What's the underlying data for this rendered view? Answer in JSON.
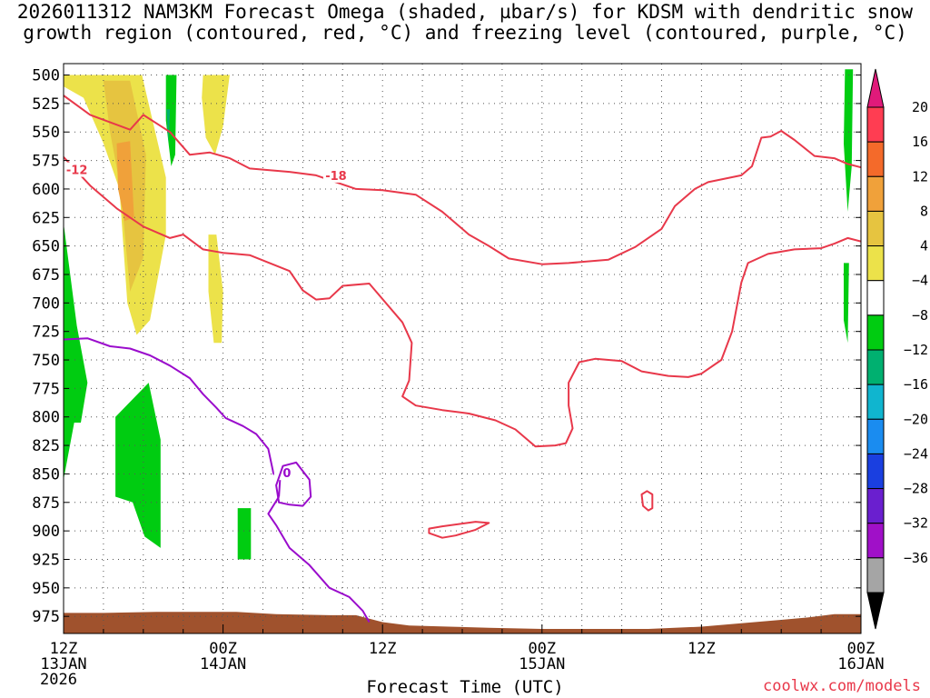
{
  "title": {
    "line1": "2026011312 NAM3KM Forecast Omega (shaded, µbar/s) for KDSM with dendritic snow",
    "line2": "growth region (contoured, red, °C) and freezing level (contoured, purple, °C)"
  },
  "credit": "coolwx.com/models",
  "chart_data": {
    "type": "heatmap",
    "title": "2026011312 NAM3KM Forecast Omega (shaded, µbar/s) for KDSM with dendritic snow growth region (contoured, red, °C) and freezing level (contoured, purple, °C)",
    "xlabel": "Forecast Time (UTC)",
    "ylabel": "",
    "xlim": [
      0,
      60
    ],
    "ylim": [
      990,
      490
    ],
    "grid": true,
    "y_ticks": [
      500,
      525,
      550,
      575,
      600,
      625,
      650,
      675,
      700,
      725,
      750,
      775,
      800,
      825,
      850,
      875,
      900,
      925,
      950,
      975
    ],
    "x_ticks": [
      {
        "hour": 0,
        "line1": "12Z",
        "line2": "13JAN"
      },
      {
        "hour": 12,
        "line1": "00Z",
        "line2": "14JAN"
      },
      {
        "hour": 24,
        "line1": "12Z",
        "line2": ""
      },
      {
        "hour": 36,
        "line1": "00Z",
        "line2": "15JAN"
      },
      {
        "hour": 48,
        "line1": "12Z",
        "line2": ""
      },
      {
        "hour": 60,
        "line1": "00Z",
        "line2": "16JAN"
      }
    ],
    "year_label": "2026",
    "colorbar": {
      "labels": [
        "20",
        "16",
        "12",
        "8",
        "4",
        "−4",
        "−8",
        "−12",
        "−16",
        "−20",
        "−24",
        "−28",
        "−32",
        "−36"
      ],
      "colors": [
        "#ff3d52",
        "#f46a2a",
        "#f0a13a",
        "#e6c440",
        "#ece24a",
        "#ffffff",
        "#00cc11",
        "#00b070",
        "#10b5cf",
        "#1a8cf0",
        "#1a3fe0",
        "#6a1fcf",
        "#a010c8",
        "#a5a5a5"
      ],
      "top_color": "#e01a7a",
      "bottom_color": "#000000"
    },
    "shaded_regions": [
      {
        "omega": 4,
        "color": "#ece24a",
        "points": [
          [
            0,
            500
          ],
          [
            5.9,
            500
          ],
          [
            7.7,
            590
          ],
          [
            7.7,
            640
          ],
          [
            6.5,
            715
          ],
          [
            5.5,
            728
          ],
          [
            4.8,
            700
          ],
          [
            4.2,
            600
          ],
          [
            3.0,
            560
          ],
          [
            1.5,
            520
          ],
          [
            0,
            510
          ]
        ]
      },
      {
        "omega": 8,
        "color": "#e6c440",
        "points": [
          [
            3.0,
            505
          ],
          [
            5.0,
            505
          ],
          [
            6.2,
            570
          ],
          [
            6.0,
            660
          ],
          [
            5.0,
            690
          ],
          [
            4.3,
            600
          ],
          [
            3.5,
            550
          ]
        ]
      },
      {
        "omega": 12,
        "color": "#f0a13a",
        "points": [
          [
            4.0,
            560
          ],
          [
            5.0,
            558
          ],
          [
            5.3,
            625
          ],
          [
            4.6,
            628
          ],
          [
            4.1,
            600
          ]
        ]
      },
      {
        "omega": 4,
        "color": "#ece24a",
        "points": [
          [
            10.5,
            500
          ],
          [
            12.5,
            500
          ],
          [
            12.0,
            545
          ],
          [
            11.4,
            570
          ],
          [
            10.7,
            555
          ],
          [
            10.4,
            520
          ]
        ]
      },
      {
        "omega": 4,
        "color": "#ece24a",
        "points": [
          [
            10.9,
            640
          ],
          [
            11.5,
            640
          ],
          [
            12.0,
            690
          ],
          [
            11.9,
            735
          ],
          [
            11.3,
            735
          ],
          [
            10.9,
            690
          ]
        ]
      },
      {
        "omega": -4,
        "color": "#00cc11",
        "points": [
          [
            7.7,
            500
          ],
          [
            8.5,
            500
          ],
          [
            8.4,
            570
          ],
          [
            8.1,
            580
          ],
          [
            7.7,
            540
          ]
        ]
      },
      {
        "omega": -8,
        "color": "#00b070",
        "points": [
          [
            7.75,
            530
          ],
          [
            8.0,
            530
          ],
          [
            7.9,
            560
          ]
        ]
      },
      {
        "omega": -4,
        "color": "#00cc11",
        "points": [
          [
            0,
            630
          ],
          [
            1.0,
            720
          ],
          [
            1.8,
            770
          ],
          [
            1.3,
            805
          ],
          [
            0.8,
            805
          ],
          [
            0,
            855
          ]
        ]
      },
      {
        "omega": -4,
        "color": "#00cc11",
        "points": [
          [
            3.9,
            800
          ],
          [
            6.4,
            770
          ],
          [
            7.3,
            820
          ],
          [
            7.3,
            915
          ],
          [
            6.1,
            905
          ],
          [
            5.2,
            875
          ],
          [
            3.9,
            870
          ]
        ]
      },
      {
        "omega": -4,
        "color": "#00cc11",
        "points": [
          [
            13.1,
            880
          ],
          [
            14.1,
            880
          ],
          [
            14.1,
            925
          ],
          [
            13.1,
            925
          ]
        ]
      },
      {
        "omega": -4,
        "color": "#00cc11",
        "points": [
          [
            58.8,
            495
          ],
          [
            59.4,
            495
          ],
          [
            59.3,
            580
          ],
          [
            59.0,
            620
          ],
          [
            58.7,
            560
          ]
        ]
      },
      {
        "omega": -4,
        "color": "#00cc11",
        "points": [
          [
            58.7,
            665
          ],
          [
            59.1,
            665
          ],
          [
            59.0,
            735
          ],
          [
            58.7,
            715
          ]
        ]
      }
    ],
    "dgz_contours": [
      {
        "label": "-18",
        "color": "#e8384a",
        "label_at": [
          20.5,
          588
        ],
        "points": [
          [
            0,
            518
          ],
          [
            2.0,
            535
          ],
          [
            5.0,
            548
          ],
          [
            6.0,
            535
          ],
          [
            8.0,
            550
          ],
          [
            9.5,
            570
          ],
          [
            11.0,
            568
          ],
          [
            12.5,
            573
          ],
          [
            14.0,
            582
          ],
          [
            17.0,
            585
          ],
          [
            19.0,
            588
          ],
          [
            22.0,
            600
          ],
          [
            24.0,
            601
          ],
          [
            26.5,
            605
          ],
          [
            28.5,
            620
          ],
          [
            30.5,
            640
          ],
          [
            32.0,
            650
          ],
          [
            33.5,
            661
          ],
          [
            36.0,
            666
          ],
          [
            38.0,
            665
          ],
          [
            41.0,
            662
          ],
          [
            43.0,
            651
          ],
          [
            45.0,
            635
          ],
          [
            46.0,
            615
          ],
          [
            47.5,
            600
          ],
          [
            48.5,
            594
          ],
          [
            51.0,
            588
          ],
          [
            51.8,
            580
          ],
          [
            52.5,
            555
          ],
          [
            53.2,
            554
          ],
          [
            54.0,
            549
          ],
          [
            55.0,
            557
          ],
          [
            56.5,
            571
          ],
          [
            58.0,
            573
          ],
          [
            59.0,
            578
          ],
          [
            60.0,
            581
          ]
        ]
      },
      {
        "label": "-12",
        "color": "#e8384a",
        "label_at": [
          1.0,
          583
        ],
        "points": [
          [
            0,
            572
          ],
          [
            2.0,
            597
          ],
          [
            4.0,
            617
          ],
          [
            6.0,
            633
          ],
          [
            8.0,
            643
          ],
          [
            9.0,
            640
          ],
          [
            10.5,
            653
          ],
          [
            12.0,
            656
          ],
          [
            14.0,
            658
          ],
          [
            17.0,
            672
          ],
          [
            18.0,
            689
          ],
          [
            19.0,
            697
          ],
          [
            20.0,
            696
          ],
          [
            21.0,
            685
          ],
          [
            23.0,
            683
          ],
          [
            25.5,
            717
          ],
          [
            26.2,
            735
          ],
          [
            26.0,
            768
          ],
          [
            25.5,
            782
          ],
          [
            26.5,
            790
          ],
          [
            28.5,
            794
          ],
          [
            30.5,
            797
          ],
          [
            32.5,
            803
          ],
          [
            34.0,
            811
          ],
          [
            35.5,
            826
          ],
          [
            37.0,
            825
          ],
          [
            37.8,
            823
          ],
          [
            38.3,
            810
          ],
          [
            38.0,
            790
          ],
          [
            38.0,
            770
          ],
          [
            38.8,
            752
          ],
          [
            40.0,
            749
          ],
          [
            42.0,
            751
          ],
          [
            43.5,
            760
          ],
          [
            45.5,
            764
          ],
          [
            47.0,
            765
          ],
          [
            48.0,
            762
          ],
          [
            49.5,
            750
          ],
          [
            50.3,
            725
          ],
          [
            51.0,
            682
          ],
          [
            51.5,
            665
          ],
          [
            53.0,
            657
          ],
          [
            55.0,
            653
          ],
          [
            57.0,
            652
          ],
          [
            58.0,
            648
          ],
          [
            59.0,
            643
          ],
          [
            60.0,
            646
          ]
        ]
      },
      {
        "label": "",
        "color": "#e8384a",
        "closed": true,
        "points": [
          [
            27.5,
            898
          ],
          [
            28.5,
            896
          ],
          [
            31.0,
            892
          ],
          [
            32.0,
            893
          ],
          [
            31.0,
            899
          ],
          [
            29.5,
            904
          ],
          [
            28.5,
            906
          ],
          [
            27.5,
            902
          ]
        ]
      },
      {
        "label": "",
        "color": "#e8384a",
        "closed": true,
        "points": [
          [
            43.5,
            868
          ],
          [
            43.9,
            865
          ],
          [
            44.3,
            868
          ],
          [
            44.3,
            880
          ],
          [
            44.0,
            882
          ],
          [
            43.6,
            878
          ]
        ]
      }
    ],
    "freezing_contours": [
      {
        "label": "0",
        "color": "#9a0ccc",
        "label_at": [
          16.8,
          849
        ],
        "points": [
          [
            0,
            732
          ],
          [
            1.8,
            731
          ],
          [
            3.5,
            738
          ],
          [
            5.0,
            740
          ],
          [
            6.5,
            746
          ],
          [
            8.0,
            755
          ],
          [
            9.5,
            766
          ],
          [
            10.5,
            780
          ],
          [
            11.5,
            792
          ],
          [
            12.2,
            801
          ],
          [
            13.5,
            808
          ],
          [
            14.5,
            815
          ],
          [
            15.4,
            828
          ],
          [
            15.8,
            850
          ],
          [
            16.3,
            853
          ],
          [
            16.2,
            870
          ]
        ]
      },
      {
        "label": "",
        "color": "#9a0ccc",
        "closed": true,
        "points": [
          [
            16.5,
            843
          ],
          [
            17.5,
            840
          ],
          [
            18.5,
            855
          ],
          [
            18.6,
            870
          ],
          [
            18.0,
            878
          ],
          [
            17.0,
            877
          ],
          [
            16.2,
            875
          ],
          [
            16.0,
            860
          ]
        ]
      },
      {
        "label": "",
        "color": "#9a0ccc",
        "points": [
          [
            16.2,
            870
          ],
          [
            15.4,
            885
          ],
          [
            16.0,
            895
          ],
          [
            17.0,
            915
          ],
          [
            18.5,
            930
          ],
          [
            20.0,
            950
          ],
          [
            21.5,
            958
          ],
          [
            22.5,
            970
          ],
          [
            23.0,
            980
          ]
        ]
      }
    ],
    "terrain": {
      "color": "#a0522d",
      "surface": [
        [
          0,
          972
        ],
        [
          3.0,
          972
        ],
        [
          7.0,
          971
        ],
        [
          10.0,
          971
        ],
        [
          13.0,
          971
        ],
        [
          16.0,
          973
        ],
        [
          20.0,
          974
        ],
        [
          22.0,
          974
        ],
        [
          24.0,
          980
        ],
        [
          26.0,
          983
        ],
        [
          29.0,
          984
        ],
        [
          32.0,
          985
        ],
        [
          36.0,
          986
        ],
        [
          40.0,
          986
        ],
        [
          44.0,
          986
        ],
        [
          48.0,
          984
        ],
        [
          50.0,
          982
        ],
        [
          54.0,
          978
        ],
        [
          56.0,
          976
        ],
        [
          58.0,
          973
        ],
        [
          60.0,
          973
        ]
      ]
    }
  }
}
